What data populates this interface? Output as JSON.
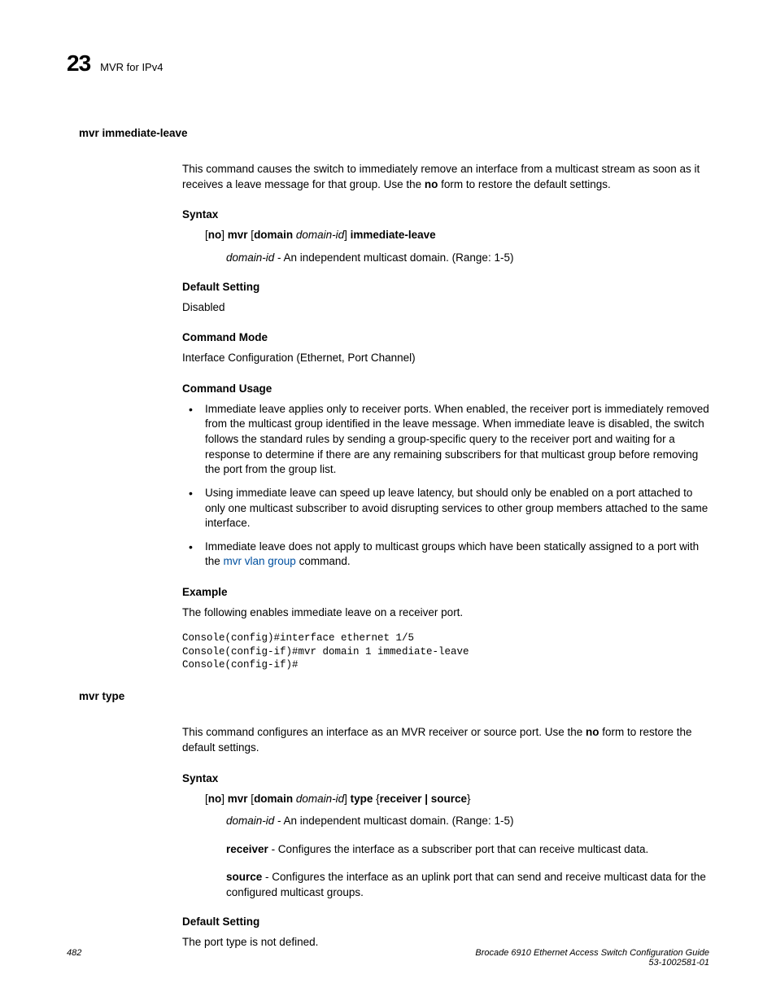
{
  "header": {
    "chapter_num": "23",
    "chapter_title": "MVR for IPv4"
  },
  "section1": {
    "title": "mvr immediate-leave",
    "intro_pre": "This command causes the switch to immediately remove an interface from a multicast stream as soon as it receives a leave message for that group. Use the ",
    "intro_bold": "no",
    "intro_post": " form to restore the default settings.",
    "syntax_label": "Syntax",
    "syntax": {
      "p1": "[",
      "p2": "no",
      "p3": "] ",
      "p4": "mvr",
      "p5": " [",
      "p6": "domain",
      "p7": " ",
      "p8": "domain-id",
      "p9": "] ",
      "p10": "immediate-leave"
    },
    "syntax_desc_italic": "domain-id",
    "syntax_desc_rest": " - An independent multicast domain. (Range: 1-5)",
    "default_label": "Default Setting",
    "default_value": "Disabled",
    "mode_label": "Command Mode",
    "mode_value": "Interface Configuration (Ethernet, Port Channel)",
    "usage_label": "Command Usage",
    "usage_items": {
      "i1": "Immediate leave applies only to receiver ports. When enabled, the receiver port is immediately removed from the multicast group identified in the leave message. When immediate leave is disabled, the switch follows the standard rules by sending a group-specific query to the receiver port and waiting for a response to determine if there are any remaining subscribers for that multicast group before removing the port from the group list.",
      "i2": "Using immediate leave can speed up leave latency, but should only be enabled on a port attached to only one multicast subscriber to avoid disrupting services to other group members attached to the same interface.",
      "i3_pre": "Immediate leave does not apply to multicast groups which have been statically assigned to a port with the ",
      "i3_link": "mvr vlan group",
      "i3_post": " command."
    },
    "example_label": "Example",
    "example_text": "The following enables immediate leave on a receiver port.",
    "example_code": "Console(config)#interface ethernet 1/5\nConsole(config-if)#mvr domain 1 immediate-leave\nConsole(config-if)#"
  },
  "section2": {
    "title": "mvr type",
    "intro_pre": "This command configures an interface as an MVR receiver or source port. Use the ",
    "intro_bold": "no",
    "intro_post": " form to restore the default settings.",
    "syntax_label": "Syntax",
    "syntax": {
      "p1": "[",
      "p2": "no",
      "p3": "] ",
      "p4": "mvr",
      "p5": " [",
      "p6": "domain",
      "p7": " ",
      "p8": "domain-id",
      "p9": "] ",
      "p10": "type",
      "p11": " {",
      "p12": "receiver | source",
      "p13": "}"
    },
    "d1_italic": "domain-id",
    "d1_rest": " - An independent multicast domain. (Range: 1-5)",
    "d2_bold": "receiver",
    "d2_rest": " - Configures the interface as a subscriber port that can receive multicast data.",
    "d3_bold": "source",
    "d3_rest": " - Configures the interface as an uplink port that can send and receive multicast data for the configured multicast groups.",
    "default_label": "Default Setting",
    "default_value": "The port type is not defined."
  },
  "footer": {
    "page_num": "482",
    "title": "Brocade 6910 Ethernet Access Switch Configuration Guide",
    "docnum": "53-1002581-01"
  }
}
